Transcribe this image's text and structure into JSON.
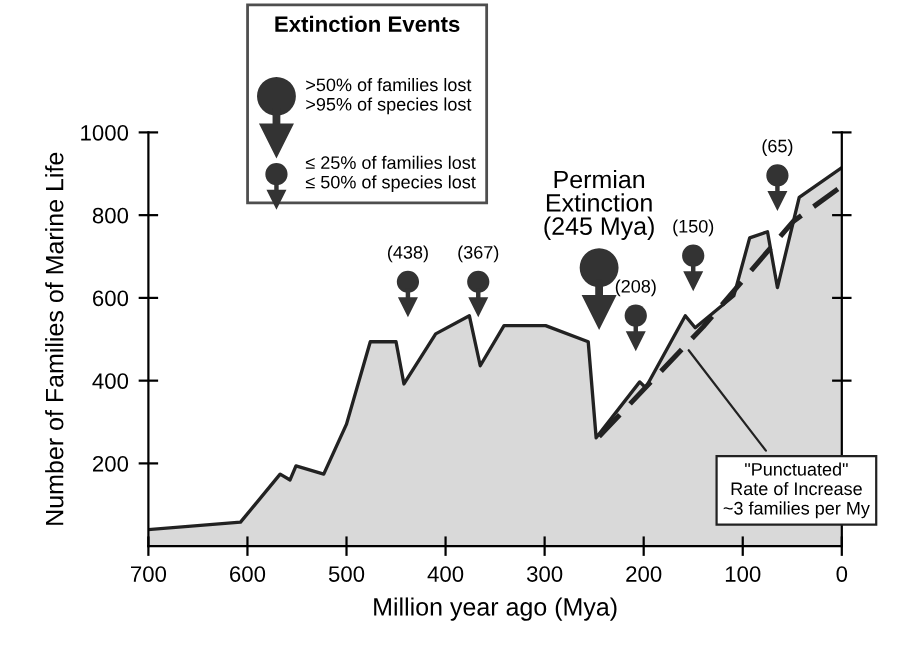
{
  "chart_data": {
    "type": "area",
    "xlabel": "Million year ago (Mya)",
    "ylabel": "Number of Families of Marine Life",
    "xlim": [
      700,
      0
    ],
    "xticks": [
      700,
      600,
      500,
      400,
      300,
      200,
      100,
      0
    ],
    "ylim": [
      0,
      1000
    ],
    "yticks": [
      200,
      400,
      600,
      800,
      1000
    ],
    "grid": false,
    "legend": "top left",
    "legend_title": "Extinction Events",
    "series": [
      {
        "color": "#d9d9d9",
        "x": [
          700,
          607,
          567,
          557,
          551,
          523,
          500,
          476,
          450,
          442,
          410,
          376,
          365,
          341,
          299,
          256,
          248,
          204,
          198,
          158,
          148,
          109,
          93,
          75,
          65,
          43,
          0
        ],
        "values": [
          40,
          58,
          174,
          160,
          194,
          174,
          295,
          494,
          494,
          392,
          513,
          557,
          436,
          533,
          533,
          494,
          262,
          397,
          383,
          557,
          528,
          605,
          745,
          760,
          625,
          843,
          915
        ]
      },
      {
        "type": "line",
        "color": "#222222",
        "line_style": "dashed",
        "x": [
          245,
          140,
          49,
          0
        ],
        "values": [
          265,
          530,
          785,
          870
        ]
      },
      {
        "type": "scatter",
        "marker": "circle",
        "color": "#333333",
        "name": ">50% of families lost\n>95% of species lost",
        "x": [
          245
        ],
        "values": [
          673
        ]
      },
      {
        "type": "scatter",
        "marker": "circle",
        "color": "#333333",
        "name": "≤ 25% of families lost\n≤ 50% of species lost",
        "x": [
          438,
          367,
          208,
          150,
          65
        ],
        "values": [
          639,
          639,
          557,
          702,
          896
        ]
      }
    ],
    "annotations": [
      {
        "text": "Permian\nExtinction\n(245 Mya)",
        "x": 245,
        "y": 673
      },
      {
        "text": "(438)",
        "x": 438,
        "y": 639
      },
      {
        "text": "(367)",
        "x": 367,
        "y": 639
      },
      {
        "text": "(208)",
        "x": 208,
        "y": 557
      },
      {
        "text": "(150)",
        "x": 150,
        "y": 702
      },
      {
        "text": "(65)",
        "x": 65,
        "y": 896
      },
      {
        "text": "\"Punctuated\"\nRate of Increase\n~3 families per My",
        "x": 158,
        "y": 484
      }
    ]
  }
}
